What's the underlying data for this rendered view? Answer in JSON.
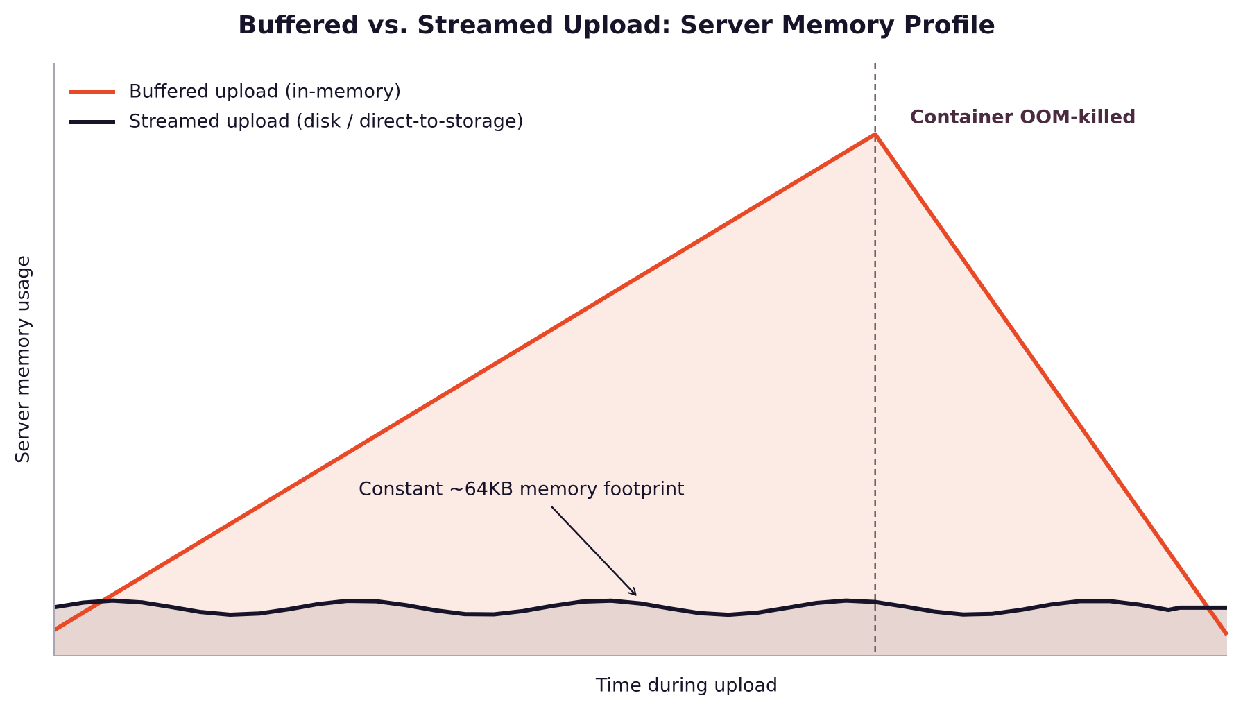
{
  "chart_data": {
    "type": "line",
    "title": "Buffered vs. Streamed Upload: Server Memory Profile",
    "x_label": "Time during upload",
    "y_label": "Server memory usage",
    "xlim": [
      0,
      10
    ],
    "ylim": [
      0,
      100
    ],
    "legend": "upper left",
    "series": [
      {
        "name": "Buffered upload (in-memory)",
        "color": "#e84a27",
        "fill": "#fbe6e1",
        "x": [
          0,
          7,
          10
        ],
        "values": [
          4.3,
          88,
          3.5
        ]
      },
      {
        "name": "Streamed upload (disk / direct-to-storage)",
        "color": "#17142a",
        "fill": "#e2d1ce",
        "x": [
          0,
          0.25,
          0.5,
          0.75,
          1,
          1.25,
          1.5,
          1.75,
          2,
          2.25,
          2.5,
          2.75,
          3,
          3.25,
          3.5,
          3.75,
          4,
          4.25,
          4.5,
          4.75,
          5,
          5.25,
          5.5,
          5.75,
          6,
          6.25,
          6.5,
          6.75,
          7,
          7.25,
          7.5,
          7.75,
          8,
          8.25,
          8.5,
          8.75,
          9,
          9.25,
          9.5,
          9.6,
          10
        ],
        "values": [
          8.16,
          8.96,
          9.3,
          8.99,
          8.2,
          7.36,
          6.91,
          7.11,
          7.83,
          8.7,
          9.25,
          9.18,
          8.52,
          7.64,
          7.01,
          6.97,
          7.53,
          8.4,
          9.12,
          9.28,
          8.81,
          7.96,
          7.18,
          6.9,
          7.26,
          8.07,
          8.9,
          9.3,
          9.06,
          8.29,
          7.44,
          6.94,
          7.06,
          7.75,
          8.63,
          9.22,
          9.21,
          8.61,
          7.72,
          8.1,
          8.1
        ]
      }
    ],
    "vline_x": 7,
    "annotations": [
      "Container OOM-killed",
      "Constant ~64KB memory footprint"
    ]
  }
}
